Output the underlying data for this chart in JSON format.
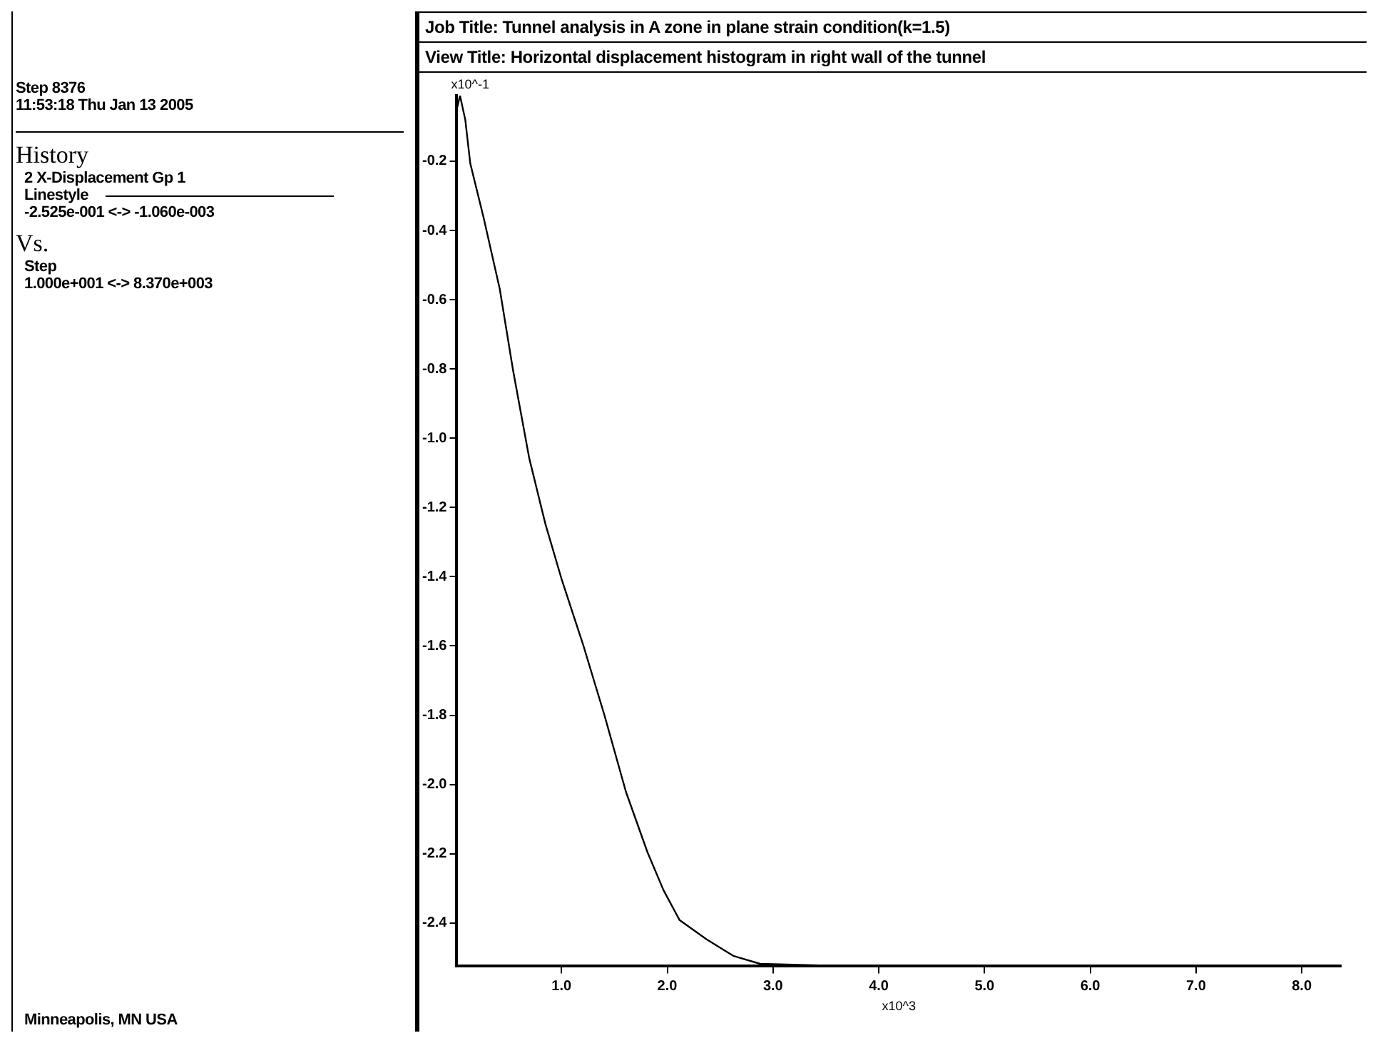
{
  "chart_data": {
    "type": "line",
    "title": "Job Title:  Tunnel analysis in A zone in plane strain condition(k=1.5)",
    "subtitle": "View Title: Horizontal displacement histogram in right wall of the tunnel",
    "ylabel": "x10^-1",
    "xlabel": "x10^3",
    "annotations": [
      "Step 8376",
      "11:53:18 Thu Jan 13 2005",
      "History",
      "2 X-Displacement Gp 1",
      "Linestyle",
      "-2.525e-001 <-> -1.060e-003",
      "Vs.",
      "Step",
      "1.000e+001 <-> 8.370e+003",
      "Minneapolis, MN  USA"
    ],
    "x": [
      0.01,
      0.04,
      0.09,
      0.137,
      0.264,
      0.416,
      0.543,
      0.695,
      0.848,
      1.0,
      1.203,
      1.406,
      1.609,
      1.812,
      1.964,
      2.117,
      2.37,
      2.624,
      2.878,
      3.5,
      5.0,
      8.37
    ],
    "series": [
      {
        "color": "#000000",
        "values": [
          -0.05,
          -0.0106,
          -0.08,
          -0.206,
          -0.364,
          -0.569,
          -0.806,
          -1.058,
          -1.248,
          -1.406,
          -1.595,
          -1.8,
          -2.021,
          -2.195,
          -2.305,
          -2.392,
          -2.447,
          -2.495,
          -2.518,
          -2.523,
          -2.524,
          -2.525
        ]
      }
    ],
    "xlim": [
      0.01,
      8.37
    ],
    "ylim": [
      -2.525,
      -0.0106
    ],
    "xticks": [
      {
        "value": 1,
        "label": "1.0"
      },
      {
        "value": 2,
        "label": "2.0"
      },
      {
        "value": 3,
        "label": "3.0"
      },
      {
        "value": 4,
        "label": "4.0"
      },
      {
        "value": 5,
        "label": "5.0"
      },
      {
        "value": 6,
        "label": "6.0"
      },
      {
        "value": 7,
        "label": "7.0"
      },
      {
        "value": 8,
        "label": "8.0"
      }
    ],
    "yticks": [
      -0.2,
      -0.4,
      -0.6,
      -0.8,
      {
        "value": -1,
        "label": "-1.0"
      },
      -1.2,
      -1.4,
      -1.6,
      -1.8,
      {
        "value": -2,
        "label": "-2.0"
      },
      -2.2,
      -2.4
    ],
    "grid": false,
    "legend": false,
    "marker": "none",
    "line_style": "solid"
  }
}
